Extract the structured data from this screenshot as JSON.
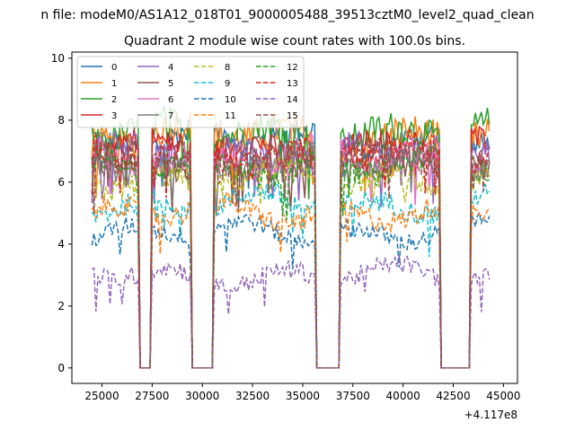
{
  "chart_data": {
    "type": "line",
    "suptitle": "n file: modeM0/AS1A12_018T01_9000005488_39513cztM0_level2_quad_clean",
    "title": "Quadrant 2 module wise count rates with 100.0s bins.",
    "xlabel": "",
    "ylabel": "",
    "x_offset_label": "+4.117e8",
    "xlim": [
      23500,
      45700
    ],
    "ylim": [
      -0.5,
      10.2
    ],
    "x_ticks": [
      25000,
      27500,
      30000,
      32500,
      35000,
      37500,
      40000,
      42500,
      45000
    ],
    "x_tick_labels": [
      "25000",
      "27500",
      "30000",
      "32500",
      "35000",
      "37500",
      "40000",
      "42500",
      "45000"
    ],
    "y_ticks": [
      0,
      2,
      4,
      6,
      8,
      10
    ],
    "y_tick_labels": [
      "0",
      "2",
      "4",
      "6",
      "8",
      "10"
    ],
    "grid": false,
    "legend_location": "upper-left",
    "legend_columns": 4,
    "bin_size_s": 100,
    "active_intervals": [
      [
        24500,
        26800
      ],
      [
        27500,
        29400
      ],
      [
        30600,
        35600
      ],
      [
        36900,
        41800
      ],
      [
        43400,
        44300
      ]
    ],
    "zero_intervals": [
      [
        26900,
        27400
      ],
      [
        29500,
        30500
      ],
      [
        35700,
        36800
      ],
      [
        41900,
        43300
      ]
    ],
    "series": [
      {
        "name": "0",
        "style": "solid",
        "color": "#1f77b4",
        "mean": 7.4,
        "noise": 0.45
      },
      {
        "name": "1",
        "style": "solid",
        "color": "#ff7f0e",
        "mean": 7.5,
        "noise": 0.55
      },
      {
        "name": "2",
        "style": "solid",
        "color": "#2ca02c",
        "mean": 7.6,
        "noise": 0.5
      },
      {
        "name": "3",
        "style": "solid",
        "color": "#d62728",
        "mean": 7.1,
        "noise": 0.4
      },
      {
        "name": "4",
        "style": "solid",
        "color": "#9467bd",
        "mean": 6.9,
        "noise": 0.45
      },
      {
        "name": "5",
        "style": "solid",
        "color": "#8c564b",
        "mean": 6.6,
        "noise": 0.4
      },
      {
        "name": "6",
        "style": "solid",
        "color": "#e377c2",
        "mean": 6.8,
        "noise": 0.45
      },
      {
        "name": "7",
        "style": "solid",
        "color": "#7f7f7f",
        "mean": 6.6,
        "noise": 0.4
      },
      {
        "name": "8",
        "style": "dashed",
        "color": "#bcbd22",
        "mean": 6.1,
        "noise": 0.4
      },
      {
        "name": "9",
        "style": "dashed",
        "color": "#17becf",
        "mean": 5.3,
        "noise": 0.35
      },
      {
        "name": "10",
        "style": "dashed",
        "color": "#1f77b4",
        "mean": 4.4,
        "noise": 0.3
      },
      {
        "name": "11",
        "style": "dashed",
        "color": "#ff7f0e",
        "mean": 5.0,
        "noise": 0.35
      },
      {
        "name": "12",
        "style": "dashed",
        "color": "#2ca02c",
        "mean": 6.5,
        "noise": 0.4
      },
      {
        "name": "13",
        "style": "dashed",
        "color": "#d62728",
        "mean": 6.9,
        "noise": 0.45
      },
      {
        "name": "14",
        "style": "dashed",
        "color": "#9467bd",
        "mean": 3.0,
        "noise": 0.3
      },
      {
        "name": "15",
        "style": "dashed",
        "color": "#8c564b",
        "mean": 6.7,
        "noise": 0.4
      }
    ]
  }
}
